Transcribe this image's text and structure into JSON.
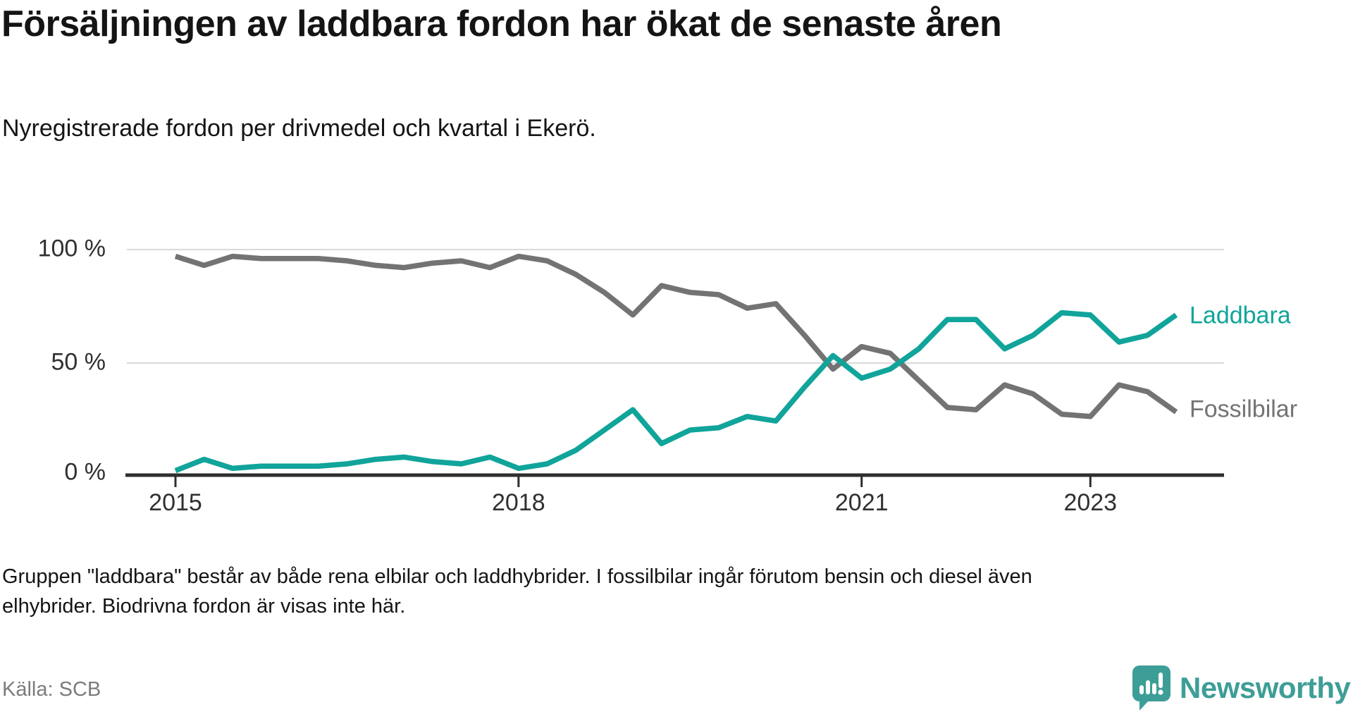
{
  "header": {
    "title": "Försäljningen av laddbara fordon har ökat de senaste åren",
    "subtitle": "Nyregistrerade fordon per drivmedel och kvartal i Ekerö."
  },
  "chart_data": {
    "type": "line",
    "unit": "%",
    "ylim": [
      0,
      100
    ],
    "grid": "horizontal-only",
    "legend_position": "right-end-of-lines",
    "y_ticks": [
      "100 %",
      "50 %",
      "0 %"
    ],
    "x_ticks": [
      {
        "label": "2015",
        "n": 0
      },
      {
        "label": "2018",
        "n": 12
      },
      {
        "label": "2021",
        "n": 24
      },
      {
        "label": "2023",
        "n": 32
      }
    ],
    "quarters": [
      "2015 Q1",
      "2015 Q2",
      "2015 Q3",
      "2015 Q4",
      "2016 Q1",
      "2016 Q2",
      "2016 Q3",
      "2016 Q4",
      "2017 Q1",
      "2017 Q2",
      "2017 Q3",
      "2017 Q4",
      "2018 Q1",
      "2018 Q2",
      "2018 Q3",
      "2018 Q4",
      "2019 Q1",
      "2019 Q2",
      "2019 Q3",
      "2019 Q4",
      "2020 Q1",
      "2020 Q2",
      "2020 Q3",
      "2020 Q4",
      "2021 Q1",
      "2021 Q2",
      "2021 Q3",
      "2021 Q4",
      "2022 Q1",
      "2022 Q2",
      "2022 Q3",
      "2022 Q4",
      "2023 Q1",
      "2023 Q2",
      "2023 Q3",
      "2023 Q4"
    ],
    "series": [
      {
        "name": "Fossilbilar",
        "color": "#737373",
        "values": [
          97,
          93,
          97,
          96,
          96,
          96,
          95,
          93,
          92,
          94,
          95,
          92,
          97,
          95,
          89,
          81,
          71,
          84,
          81,
          80,
          74,
          76,
          62,
          47,
          57,
          54,
          42,
          30,
          29,
          40,
          36,
          27,
          26,
          40,
          37,
          28
        ]
      },
      {
        "name": "Laddbara",
        "color": "#10a49a",
        "values": [
          2,
          7,
          3,
          4,
          4,
          4,
          5,
          7,
          8,
          6,
          5,
          8,
          3,
          5,
          11,
          20,
          29,
          14,
          20,
          21,
          26,
          24,
          39,
          53,
          43,
          47,
          56,
          69,
          69,
          56,
          62,
          72,
          71,
          59,
          62,
          71
        ]
      }
    ]
  },
  "footnote": "Gruppen \"laddbara\" består av både rena elbilar och laddhybrider. I fossilbilar ingår förutom bensin och diesel även elhybrider. Biodrivna fordon är visas inte här.",
  "source": "Källa: SCB",
  "brand": {
    "name": "Newsworthy",
    "color": "#3d9e97",
    "icon": "newsworthy-speech-bubble-barchart-icon"
  }
}
